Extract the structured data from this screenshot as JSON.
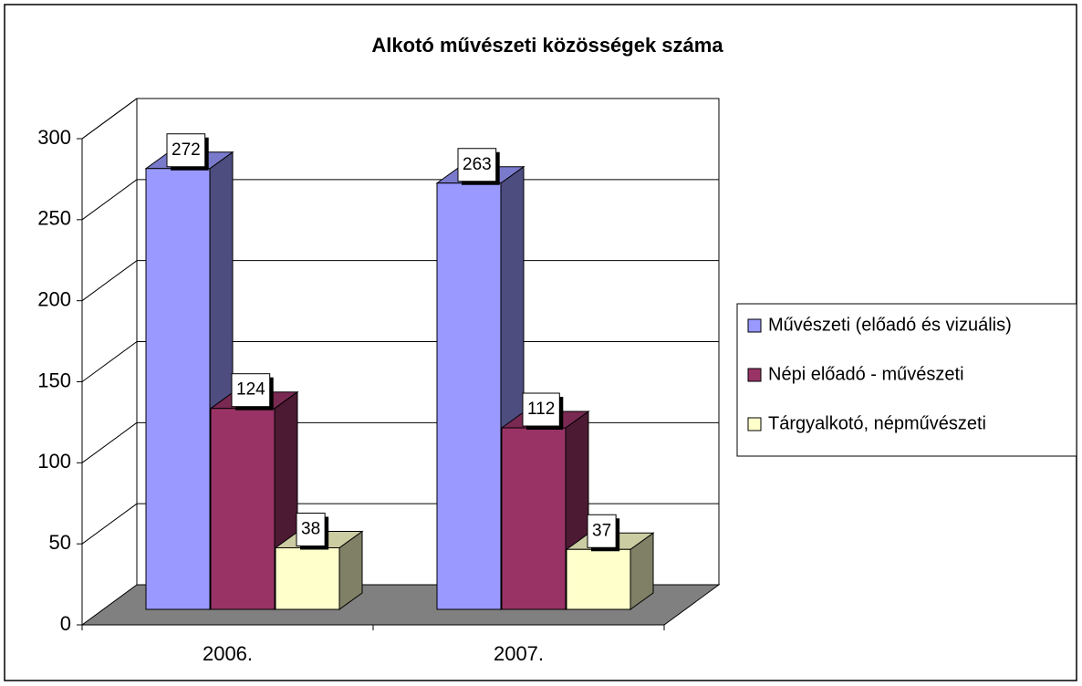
{
  "chart_data": {
    "type": "bar3d",
    "title": "Alkotó művészeti közösségek száma",
    "categories": [
      "2006.",
      "2007."
    ],
    "series": [
      {
        "name": "Művészeti (előadó és vizuális)",
        "color": "#9999ff",
        "values": [
          272,
          263
        ]
      },
      {
        "name": "Népi előadó - művészeti",
        "color": "#993366",
        "values": [
          124,
          112
        ]
      },
      {
        "name": "Tárgyalkotó, népművészeti",
        "color": "#ffffcc",
        "values": [
          38,
          37
        ]
      }
    ],
    "ylim": [
      0,
      300
    ],
    "yticks": [
      0,
      50,
      100,
      150,
      200,
      250,
      300
    ],
    "grid": true,
    "legend": "right"
  }
}
